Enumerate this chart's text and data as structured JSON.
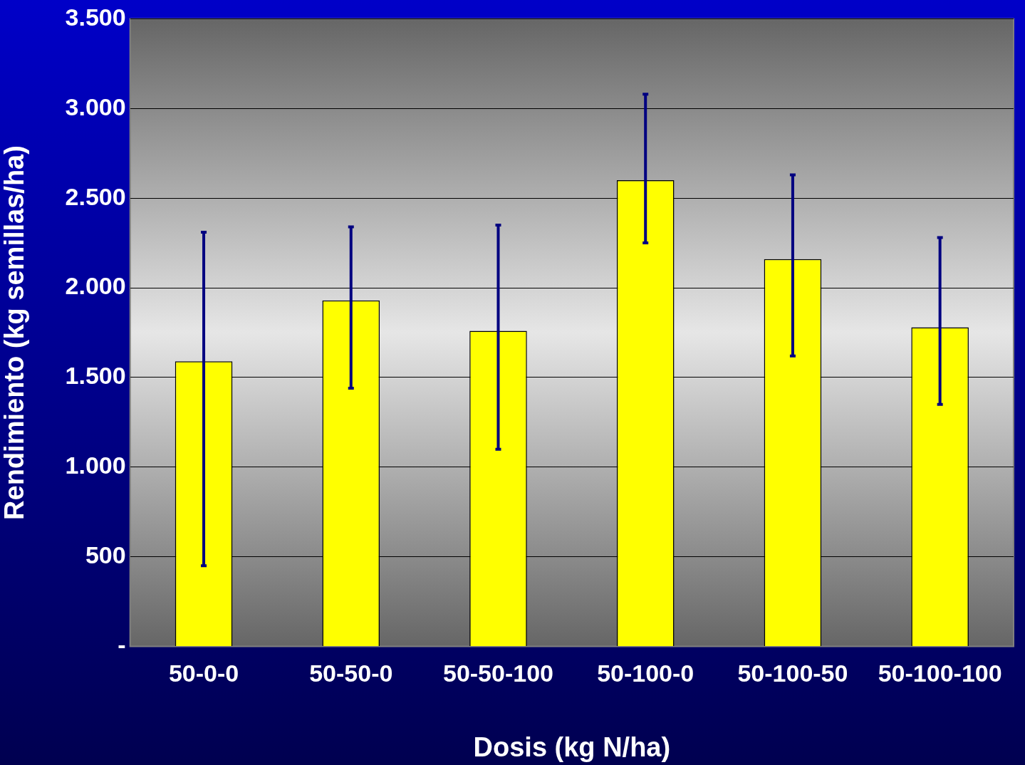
{
  "chart_data": {
    "type": "bar",
    "xlabel": "Dosis (kg N/ha)",
    "ylabel": "Rendimiento (kg semillas/ha)",
    "categories": [
      "50-0-0",
      "50-50-0",
      "50-50-100",
      "50-100-0",
      "50-100-50",
      "50-100-100"
    ],
    "values": [
      1590,
      1930,
      1760,
      2600,
      2160,
      1780
    ],
    "errors": [
      [
        450,
        2310
      ],
      [
        1440,
        2340
      ],
      [
        1100,
        2350
      ],
      [
        2250,
        3080
      ],
      [
        1620,
        2630
      ],
      [
        1350,
        2280
      ]
    ],
    "color": "#ffff00",
    "ylim": [
      0,
      3500
    ],
    "yticks": [
      {
        "value": 0,
        "label": "-"
      },
      {
        "value": 500,
        "label": "500"
      },
      {
        "value": 1000,
        "label": "1.000"
      },
      {
        "value": 1500,
        "label": "1.500"
      },
      {
        "value": 2000,
        "label": "2.000"
      },
      {
        "value": 2500,
        "label": "2.500"
      },
      {
        "value": 3000,
        "label": "3.000"
      },
      {
        "value": 3500,
        "label": "3.500"
      }
    ],
    "grid": "y",
    "legend": false
  }
}
